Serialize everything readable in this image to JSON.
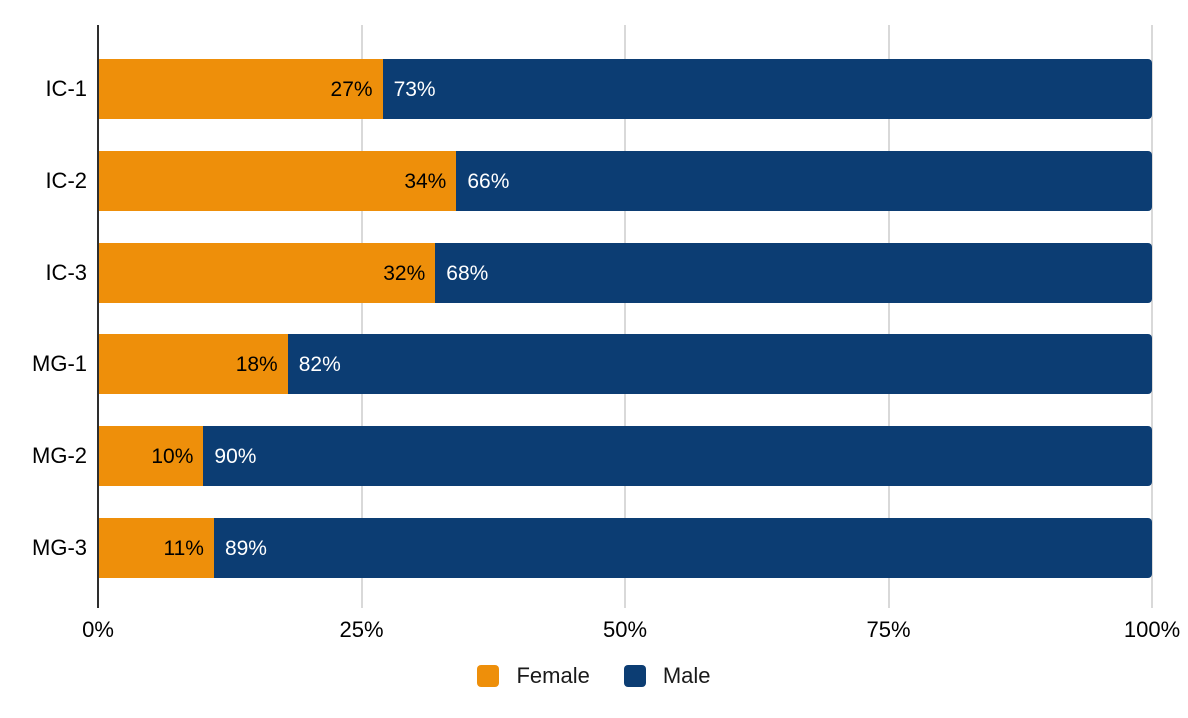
{
  "chart_data": {
    "type": "bar",
    "orientation": "horizontal",
    "stacked": true,
    "stacked_total": 100,
    "title": "",
    "xlabel": "",
    "ylabel": "",
    "categories": [
      "IC-1",
      "IC-2",
      "IC-3",
      "MG-1",
      "MG-2",
      "MG-3"
    ],
    "series": [
      {
        "name": "Female",
        "color": "#EE8F0A",
        "values": [
          27,
          34,
          32,
          18,
          10,
          11
        ],
        "label_color": "#000000",
        "labels": [
          "27%",
          "34%",
          "32%",
          "18%",
          "10%",
          "11%"
        ]
      },
      {
        "name": "Male",
        "color": "#0C3D73",
        "values": [
          73,
          66,
          68,
          82,
          90,
          89
        ],
        "label_color": "#FFFFFF",
        "labels": [
          "73%",
          "66%",
          "68%",
          "82%",
          "90%",
          "89%"
        ]
      }
    ],
    "xlim": [
      0,
      100
    ],
    "x_ticks": [
      {
        "value": 0,
        "label": "0%"
      },
      {
        "value": 25,
        "label": "25%"
      },
      {
        "value": 50,
        "label": "50%"
      },
      {
        "value": 75,
        "label": "75%"
      },
      {
        "value": 100,
        "label": "100%"
      }
    ],
    "grid": true,
    "legend_position": "bottom",
    "legend": [
      {
        "label": "Female",
        "color": "#EE8F0A"
      },
      {
        "label": "Male",
        "color": "#0C3D73"
      }
    ]
  },
  "colors": {
    "background": "#FFFFFF",
    "axis_line": "#2E2E2E",
    "gridline": "#D9D9D9",
    "bar_label_on_orange": "#000000",
    "bar_label_on_blue": "#FFFFFF",
    "tick_label": "#000000"
  }
}
